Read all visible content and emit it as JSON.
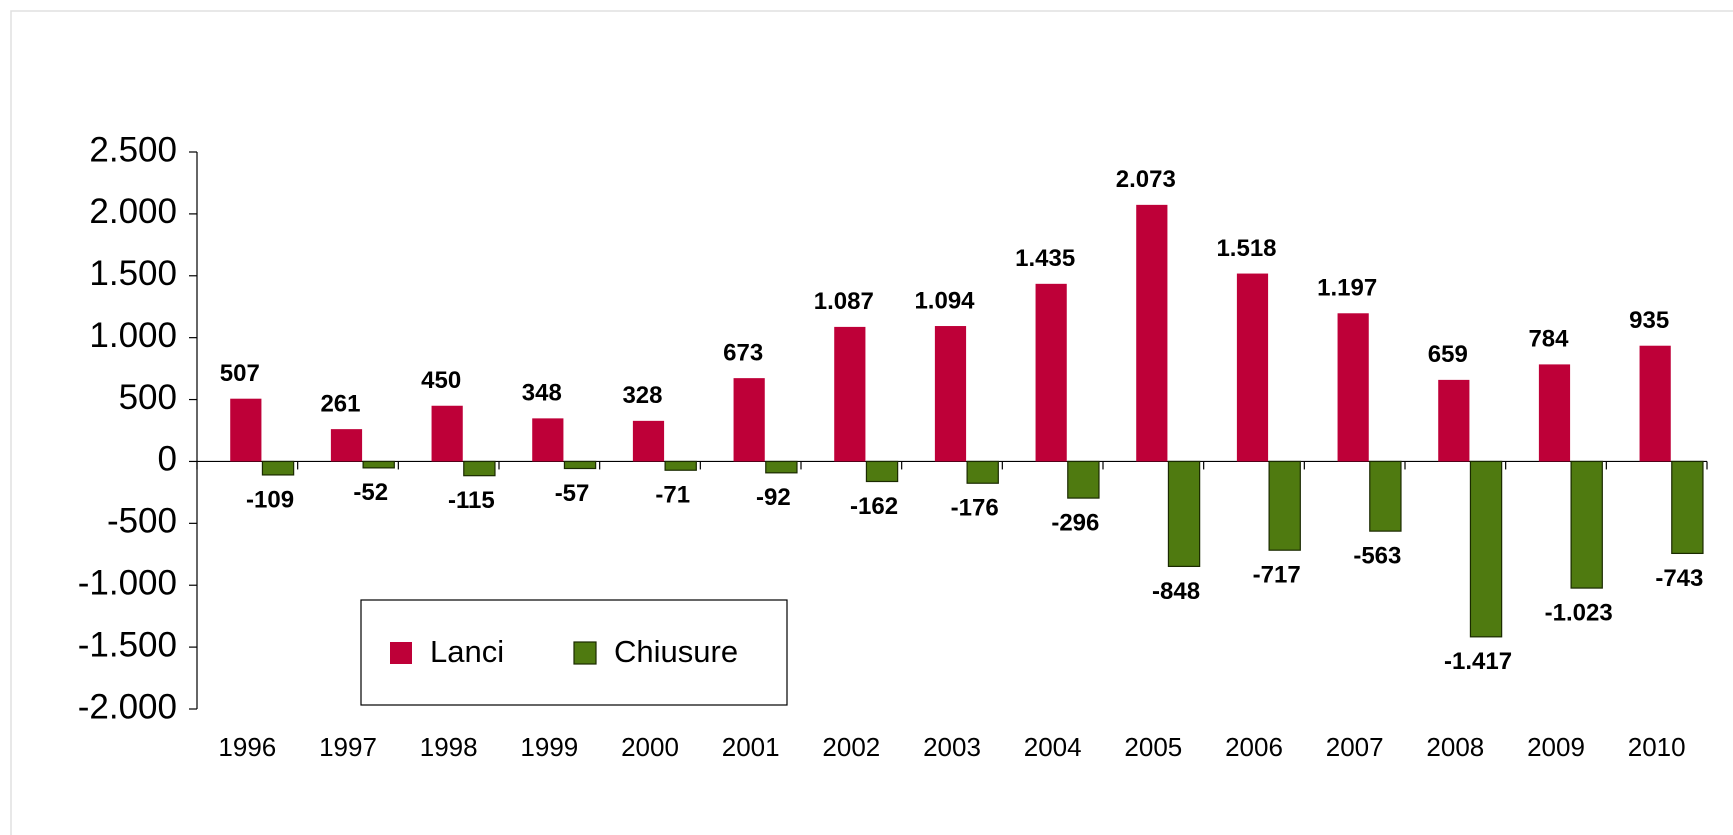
{
  "chart_data": {
    "type": "bar",
    "categories": [
      "1996",
      "1997",
      "1998",
      "1999",
      "2000",
      "2001",
      "2002",
      "2003",
      "2004",
      "2005",
      "2006",
      "2007",
      "2008",
      "2009",
      "2010"
    ],
    "series": [
      {
        "name": "Lanci",
        "color": "#be0038",
        "values": [
          507,
          261,
          450,
          348,
          328,
          673,
          1087,
          1094,
          1435,
          2073,
          1518,
          1197,
          659,
          784,
          935
        ],
        "value_labels": [
          "507",
          "261",
          "450",
          "348",
          "328",
          "673",
          "1.087",
          "1.094",
          "1.435",
          "2.073",
          "1.518",
          "1.197",
          "659",
          "784",
          "935"
        ]
      },
      {
        "name": "Chiusure",
        "color": "#4f7a10",
        "values": [
          -109,
          -52,
          -115,
          -57,
          -71,
          -92,
          -162,
          -176,
          -296,
          -848,
          -717,
          -563,
          -1417,
          -1023,
          -743
        ],
        "value_labels": [
          "-109",
          "-52",
          "-115",
          "-57",
          "-71",
          "-92",
          "-162",
          "-176",
          "-296",
          "-848",
          "-717",
          "-563",
          "-1.417",
          "-1.023",
          "-743"
        ]
      }
    ],
    "ylim": [
      -2000,
      2500
    ],
    "yticks": [
      {
        "value": -2000,
        "label": "-2.000"
      },
      {
        "value": -1500,
        "label": "-1.500"
      },
      {
        "value": -1000,
        "label": "-1.000"
      },
      -500,
      0,
      500,
      {
        "value": 1000,
        "label": "1.000"
      },
      {
        "value": 1500,
        "label": "1.500"
      },
      {
        "value": 2000,
        "label": "2.000"
      },
      {
        "value": 2500,
        "label": "2.500"
      }
    ]
  }
}
